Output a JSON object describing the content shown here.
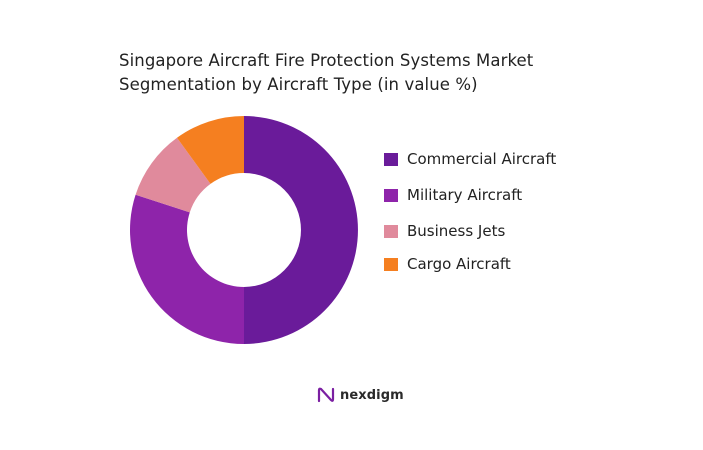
{
  "title_lines": [
    "Singapore Aircraft Fire Protection Systems Market",
    "Segmentation by Aircraft Type (in value %)"
  ],
  "brand": {
    "name": "nexdigm",
    "color": "#7b1fa2"
  },
  "chart_data": {
    "type": "pie",
    "variant": "donut",
    "title": "Singapore Aircraft Fire Protection Systems Market Segmentation by Aircraft Type (in value %)",
    "categories": [
      "Commercial Aircraft",
      "Military Aircraft",
      "Business Jets",
      "Cargo Aircraft"
    ],
    "values": [
      50,
      30,
      10,
      10
    ],
    "colors": [
      "#6a1b9a",
      "#8e24aa",
      "#e08a9c",
      "#f57f20"
    ],
    "legend_position": "right"
  }
}
